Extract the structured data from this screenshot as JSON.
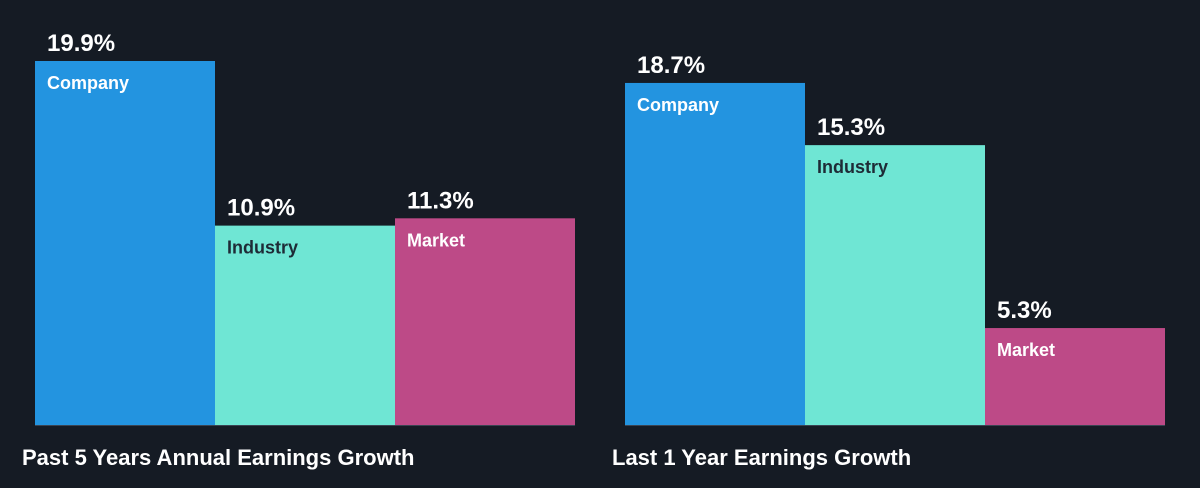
{
  "colors": {
    "background": "#151b24",
    "company": "#2394e0",
    "industry": "#6fe6d4",
    "market": "#bd4a87",
    "baseline": "#3a4452",
    "label_on_company": "#ffffff",
    "label_on_industry": "#1e2b36",
    "label_on_market": "#ffffff"
  },
  "chart_data": [
    {
      "type": "bar",
      "title": "Past 5 Years Annual Earnings Growth",
      "categories": [
        "Company",
        "Industry",
        "Market"
      ],
      "values": [
        19.9,
        10.9,
        11.3
      ],
      "value_labels": [
        "19.9%",
        "10.9%",
        "11.3%"
      ],
      "ylim": [
        0,
        19.9
      ],
      "grid": false,
      "legend": "none"
    },
    {
      "type": "bar",
      "title": "Last 1 Year Earnings Growth",
      "categories": [
        "Company",
        "Industry",
        "Market"
      ],
      "values": [
        18.7,
        15.3,
        5.3
      ],
      "value_labels": [
        "18.7%",
        "15.3%",
        "5.3%"
      ],
      "ylim": [
        0,
        19.9
      ],
      "grid": false,
      "legend": "none"
    }
  ]
}
